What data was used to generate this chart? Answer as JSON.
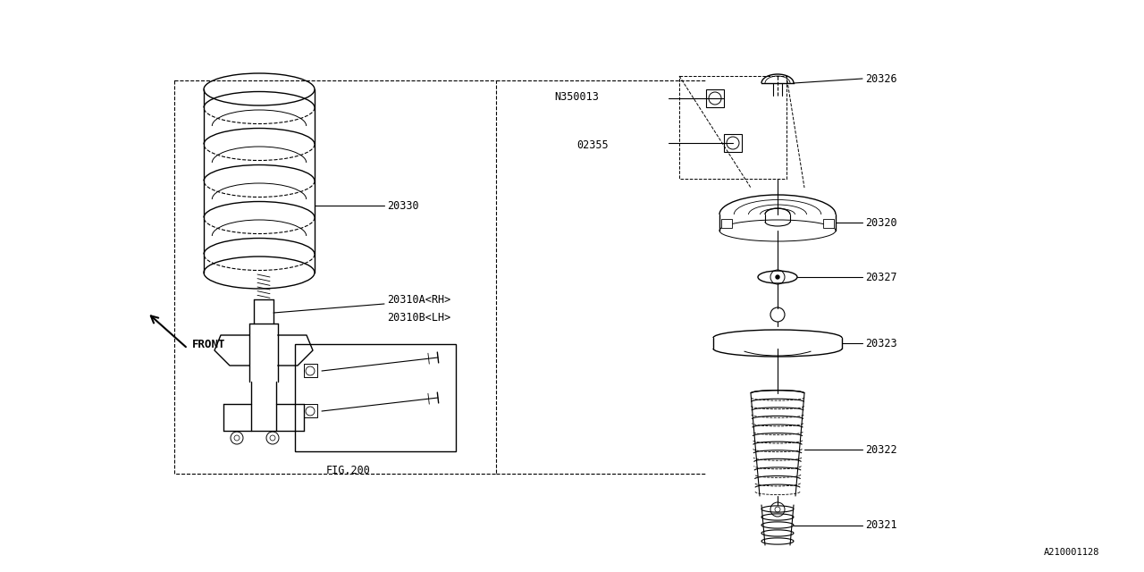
{
  "bg_color": "#ffffff",
  "line_color": "#000000",
  "lw": 1.0,
  "fig_width": 12.8,
  "fig_height": 6.4,
  "watermark": "A210001128",
  "fig200_label": "FIG.200",
  "front_label": "FRONT"
}
